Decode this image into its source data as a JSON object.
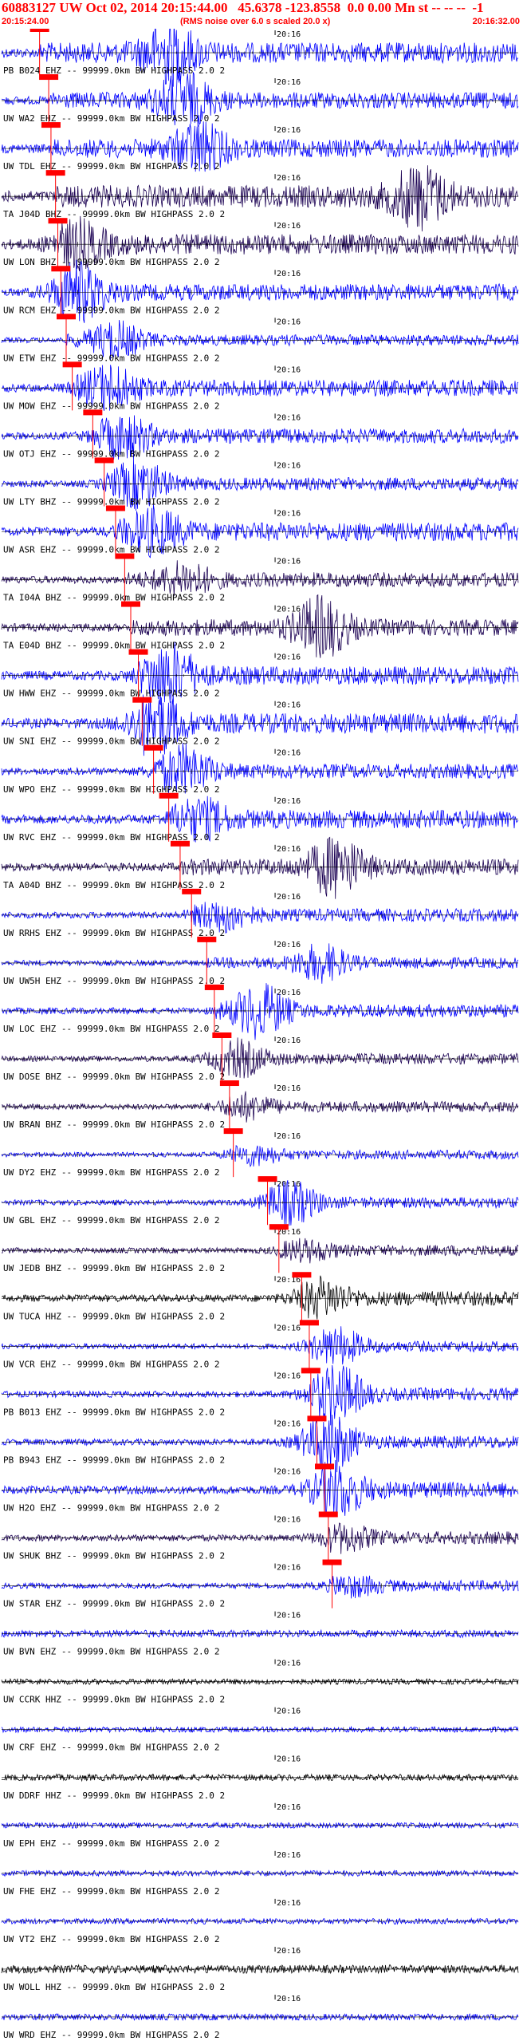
{
  "header": {
    "title": "60883127 UW Oct 02, 2014 20:15:44.00   45.6378 -123.8558  0.0 0.00 Mn st -- -- --  -1",
    "start_time": "20:15:24.00",
    "noise_note": "(RMS noise over 6.0 s scaled 20.0 x)",
    "end_time": "20:16:32.00"
  },
  "colors": {
    "header_text": "#ff0000",
    "trace_blue": "#0000ff",
    "trace_dark": "#1a0052",
    "trace_black": "#000000",
    "pick_line": "#ff0000",
    "pick_box": "#ff0000"
  },
  "chart_data": {
    "type": "line",
    "title": "60883127 UW Oct 02, 2014 20:15:44.00   45.6378 -123.8558  0.0 0.00 Mn st -- -- --  -1",
    "x_range": [
      "20:15:24.00",
      "20:16:32.00"
    ],
    "x_range_seconds": [
      0,
      68
    ],
    "minute_marker": {
      "label": "20:16",
      "time_s": 36
    },
    "grid": false,
    "legend": "none",
    "series": [
      {
        "label": "PB B024 EHZ -- 99999.0km BW  HIGHPASS  2.0  2",
        "color": "blue",
        "pick_s": 5.0,
        "amp": 0.55,
        "event_s": 22,
        "event_amp": 1.0
      },
      {
        "label": "UW WA2 EHZ -- 99999.0km BW  HIGHPASS  2.0  2",
        "color": "blue",
        "pick_s": 6.2,
        "amp": 0.45,
        "event_s": 24,
        "event_amp": 0.9
      },
      {
        "label": "UW TDL EHZ -- 99999.0km BW  HIGHPASS  2.0  2",
        "color": "blue",
        "pick_s": 6.5,
        "amp": 0.5,
        "event_s": 26,
        "event_amp": 0.8
      },
      {
        "label": "TA J04D BHZ -- 99999.0km BW  HIGHPASS  2.0  2",
        "color": "dark",
        "pick_s": 7.1,
        "amp": 0.6,
        "event_s": 55,
        "event_amp": 1.0
      },
      {
        "label": "UW LON BHZ -- 99999.0km BW  HIGHPASS  2.0  2",
        "color": "dark",
        "pick_s": 7.4,
        "amp": 0.55,
        "event_s": 10,
        "event_amp": 0.7
      },
      {
        "label": "UW RCM EHZ -- 99999.0km BW  HIGHPASS  2.0  2",
        "color": "blue",
        "pick_s": 7.8,
        "amp": 0.45,
        "event_s": 10,
        "event_amp": 1.0
      },
      {
        "label": "UW ETW EHZ -- 99999.0km BW  HIGHPASS  2.0  2",
        "color": "blue",
        "pick_s": 8.5,
        "amp": 0.3,
        "event_s": 15,
        "event_amp": 0.6
      },
      {
        "label": "UW MOW EHZ -- 99999.0km BW  HIGHPASS  2.0  2",
        "color": "blue",
        "pick_s": 9.3,
        "amp": 0.45,
        "event_s": 14,
        "event_amp": 0.7
      },
      {
        "label": "UW OTJ EHZ -- 99999.0km BW  HIGHPASS  2.0  2",
        "color": "blue",
        "pick_s": 12.0,
        "amp": 0.4,
        "event_s": 16,
        "event_amp": 0.7
      },
      {
        "label": "UW LTY BHZ -- 99999.0km BW  HIGHPASS  2.0  2",
        "color": "blue",
        "pick_s": 13.5,
        "amp": 0.35,
        "event_s": 18,
        "event_amp": 0.8
      },
      {
        "label": "UW ASR EHZ -- 99999.0km BW  HIGHPASS  2.0  2",
        "color": "blue",
        "pick_s": 15.0,
        "amp": 0.5,
        "event_s": 20,
        "event_amp": 0.7
      },
      {
        "label": "TA I04A BHZ -- 99999.0km BW  HIGHPASS  2.0  2",
        "color": "dark",
        "pick_s": 16.2,
        "amp": 0.4,
        "event_s": 24,
        "event_amp": 0.5
      },
      {
        "label": "TA E04D BHZ -- 99999.0km BW  HIGHPASS  2.0  2",
        "color": "dark",
        "pick_s": 17.0,
        "amp": 0.45,
        "event_s": 42,
        "event_amp": 1.0
      },
      {
        "label": "UW HWW EHZ -- 99999.0km BW  HIGHPASS  2.0  2",
        "color": "blue",
        "pick_s": 18.0,
        "amp": 0.5,
        "event_s": 22,
        "event_amp": 1.0
      },
      {
        "label": "UW SNI EHZ -- 99999.0km BW  HIGHPASS  2.0  2",
        "color": "blue",
        "pick_s": 18.5,
        "amp": 0.55,
        "event_s": 20,
        "event_amp": 1.0
      },
      {
        "label": "UW WPO EHZ -- 99999.0km BW  HIGHPASS  2.0  2",
        "color": "blue",
        "pick_s": 20.0,
        "amp": 0.4,
        "event_s": 24,
        "event_amp": 0.8
      },
      {
        "label": "UW RVC EHZ -- 99999.0km BW  HIGHPASS  2.0  2",
        "color": "blue",
        "pick_s": 22.0,
        "amp": 0.5,
        "event_s": 26,
        "event_amp": 0.6
      },
      {
        "label": "TA A04D BHZ -- 99999.0km BW  HIGHPASS  2.0  2",
        "color": "dark",
        "pick_s": 23.5,
        "amp": 0.45,
        "event_s": 44,
        "event_amp": 1.0
      },
      {
        "label": "UW RRHS EHZ -- 99999.0km BW  HIGHPASS  2.0  2",
        "color": "blue",
        "pick_s": 25.0,
        "amp": 0.35,
        "event_s": 29,
        "event_amp": 0.5
      },
      {
        "label": "UW UW5H EHZ -- 99999.0km BW  HIGHPASS  2.0  2",
        "color": "blue",
        "pick_s": 27.0,
        "amp": 0.3,
        "event_s": 42,
        "event_amp": 0.6
      },
      {
        "label": "UW LOC EHZ -- 99999.0km BW  HIGHPASS  2.0  2",
        "color": "blue",
        "pick_s": 28.0,
        "amp": 0.35,
        "event_s": 34,
        "event_amp": 0.9
      },
      {
        "label": "UW DOSE BHZ -- 99999.0km BW  HIGHPASS  2.0  2",
        "color": "dark",
        "pick_s": 29.0,
        "amp": 0.3,
        "event_s": 31,
        "event_amp": 0.6
      },
      {
        "label": "UW BRAN BHZ -- 99999.0km BW  HIGHPASS  2.0  2",
        "color": "dark",
        "pick_s": 30.0,
        "amp": 0.3,
        "event_s": 32,
        "event_amp": 0.4
      },
      {
        "label": "UW DY2 EHZ -- 99999.0km BW  HIGHPASS  2.0  2",
        "color": "blue",
        "pick_s": 30.5,
        "amp": 0.25,
        "event_s": 33,
        "event_amp": 0.3
      },
      {
        "label": "UW GBL EHZ -- 99999.0km BW  HIGHPASS  2.0  2",
        "color": "blue",
        "pick_s": 35.0,
        "amp": 0.3,
        "event_s": 38,
        "event_amp": 0.7
      },
      {
        "label": "UW JEDB BHZ -- 99999.0km BW  HIGHPASS  2.0  2",
        "color": "dark",
        "pick_s": 36.5,
        "amp": 0.3,
        "event_s": 40,
        "event_amp": 0.3
      },
      {
        "label": "UW TUCA HHZ -- 99999.0km BW  HIGHPASS  2.0  2",
        "color": "black",
        "pick_s": 39.5,
        "amp": 0.4,
        "event_s": 42,
        "event_amp": 0.6
      },
      {
        "label": "UW VCR EHZ -- 99999.0km BW  HIGHPASS  2.0  2",
        "color": "blue",
        "pick_s": 40.5,
        "amp": 0.3,
        "event_s": 44,
        "event_amp": 0.6
      },
      {
        "label": "PB B013 EHZ -- 99999.0km BW  HIGHPASS  2.0  2",
        "color": "blue",
        "pick_s": 40.7,
        "amp": 0.35,
        "event_s": 44,
        "event_amp": 1.0
      },
      {
        "label": "PB B943 EHZ -- 99999.0km BW  HIGHPASS  2.0  2",
        "color": "blue",
        "pick_s": 41.5,
        "amp": 0.35,
        "event_s": 43,
        "event_amp": 1.0
      },
      {
        "label": "UW H2O EHZ -- 99999.0km BW  HIGHPASS  2.0  2",
        "color": "blue",
        "pick_s": 42.5,
        "amp": 0.45,
        "event_s": 44,
        "event_amp": 0.9
      },
      {
        "label": "UW SHUK BHZ -- 99999.0km BW  HIGHPASS  2.0  2",
        "color": "dark",
        "pick_s": 43.0,
        "amp": 0.35,
        "event_s": 45,
        "event_amp": 0.4
      },
      {
        "label": "UW STAR EHZ -- 99999.0km BW  HIGHPASS  2.0  2",
        "color": "blue",
        "pick_s": 43.5,
        "amp": 0.3,
        "event_s": 46,
        "event_amp": 0.3
      },
      {
        "label": "UW BVN EHZ -- 99999.0km BW  HIGHPASS  2.0  2",
        "color": "blue",
        "pick_s": null,
        "amp": 0.4,
        "event_s": null,
        "event_amp": 0
      },
      {
        "label": "UW CCRK HHZ -- 99999.0km BW  HIGHPASS  2.0  2",
        "color": "black",
        "pick_s": null,
        "amp": 0.3,
        "event_s": null,
        "event_amp": 0
      },
      {
        "label": "UW CRF EHZ -- 99999.0km BW  HIGHPASS  2.0  2",
        "color": "blue",
        "pick_s": null,
        "amp": 0.3,
        "event_s": null,
        "event_amp": 0
      },
      {
        "label": "UW DDRF HHZ -- 99999.0km BW  HIGHPASS  2.0  2",
        "color": "black",
        "pick_s": null,
        "amp": 0.35,
        "event_s": null,
        "event_amp": 0
      },
      {
        "label": "UW EPH EHZ -- 99999.0km BW  HIGHPASS  2.0  2",
        "color": "blue",
        "pick_s": null,
        "amp": 0.3,
        "event_s": null,
        "event_amp": 0
      },
      {
        "label": "UW FHE EHZ -- 99999.0km BW  HIGHPASS  2.0  2",
        "color": "blue",
        "pick_s": null,
        "amp": 0.3,
        "event_s": null,
        "event_amp": 0
      },
      {
        "label": "UW VT2 EHZ -- 99999.0km BW  HIGHPASS  2.0  2",
        "color": "blue",
        "pick_s": null,
        "amp": 0.3,
        "event_s": null,
        "event_amp": 0
      },
      {
        "label": "UW WOLL HHZ -- 99999.0km BW  HIGHPASS  2.0  2",
        "color": "black",
        "pick_s": null,
        "amp": 0.45,
        "event_s": null,
        "event_amp": 0
      },
      {
        "label": "UW WRD EHZ -- 99999.0km BW  HIGHPASS  2.0  2",
        "color": "blue",
        "pick_s": null,
        "amp": 0.35,
        "event_s": null,
        "event_amp": 0
      }
    ]
  }
}
